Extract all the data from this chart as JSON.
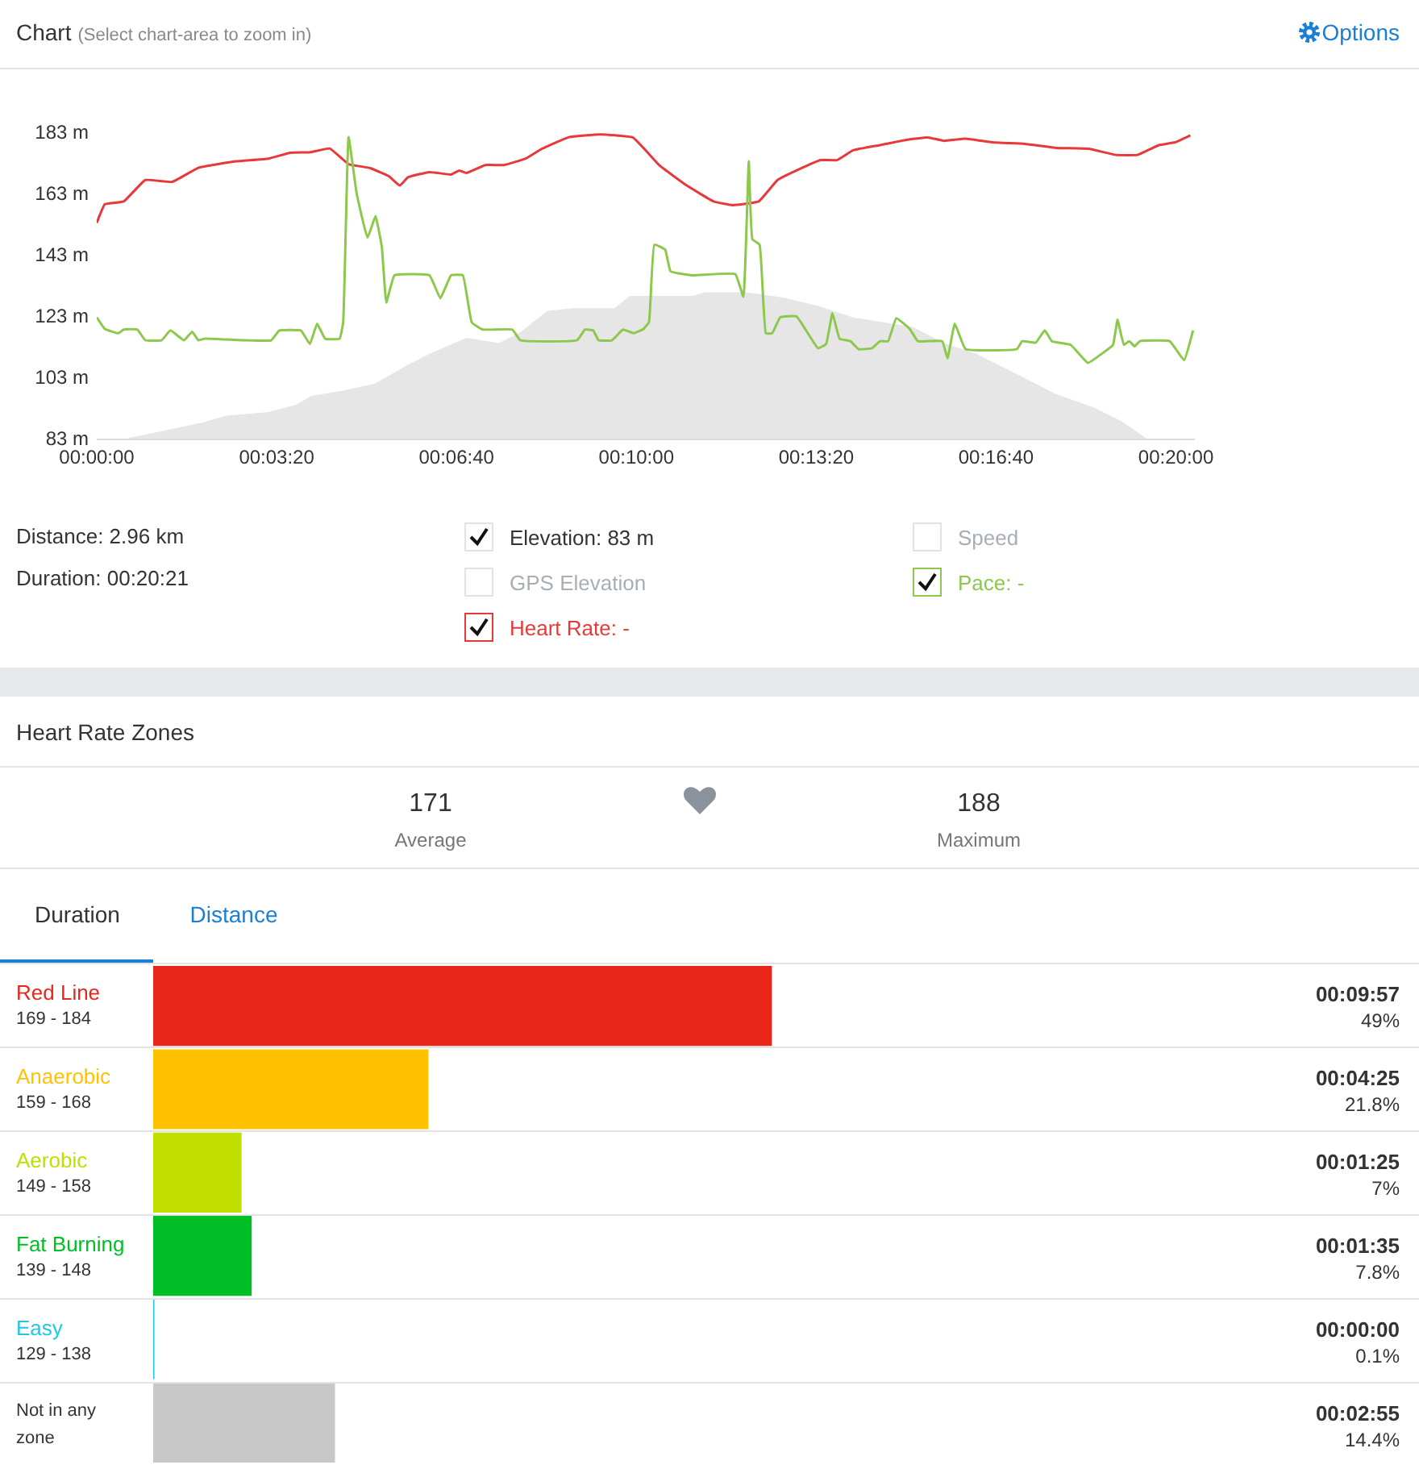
{
  "chart_data": [
    {
      "type": "line",
      "title": "Chart",
      "subtitle": "(Select chart-area to zoom in)",
      "legend": "bottom",
      "xlim": [
        0,
        1221
      ],
      "xticks": [
        {
          "value": 0,
          "label": "00:00:00"
        },
        {
          "value": 200,
          "label": "00:03:20"
        },
        {
          "value": 400,
          "label": "00:06:40"
        },
        {
          "value": 600,
          "label": "00:10:00"
        },
        {
          "value": 800,
          "label": "00:13:20"
        },
        {
          "value": 1000,
          "label": "00:16:40"
        },
        {
          "value": 1200,
          "label": "00:20:00"
        }
      ],
      "ylim": [
        83,
        183
      ],
      "yticks": [
        {
          "value": 83,
          "label": "83 m"
        },
        {
          "value": 103,
          "label": "103 m"
        },
        {
          "value": 123,
          "label": "123 m"
        },
        {
          "value": 143,
          "label": "143 m"
        },
        {
          "value": 163,
          "label": "163 m"
        },
        {
          "value": 183,
          "label": "183 m"
        }
      ],
      "annotations": [
        "Options",
        "Distance: 2.96 km",
        "Duration: 00:20:21",
        "GPS Elevation",
        "Speed"
      ],
      "series": [
        {
          "name": "Elevation: 83 m",
          "type": "area",
          "color": "#e6e6e6",
          "x": [
            36,
            60,
            89,
            119,
            143,
            191,
            221,
            239,
            274,
            310,
            346,
            370,
            411,
            447,
            471,
            501,
            529,
            576,
            593,
            662,
            677,
            722,
            763,
            805,
            841,
            907,
            942,
            978,
            1020,
            1067,
            1109,
            1139,
            1166
          ],
          "values": [
            83,
            84.4,
            86.2,
            88.1,
            90.2,
            91.4,
            93.7,
            96.7,
            98.4,
            100.7,
            106.8,
            110.4,
            115.6,
            113.9,
            117.4,
            124.4,
            125.3,
            125.3,
            129.3,
            129.3,
            130.5,
            130.5,
            128.8,
            125.8,
            122.3,
            119.2,
            113.9,
            110.4,
            104.2,
            97.2,
            92.8,
            88.4,
            83
          ]
        },
        {
          "name": "Heart Rate: -",
          "type": "line",
          "color": "#e8393a",
          "x": [
            0,
            9,
            30,
            54,
            84,
            113,
            155,
            191,
            215,
            238,
            259,
            280,
            304,
            325,
            337,
            346,
            370,
            394,
            403,
            411,
            432,
            453,
            477,
            495,
            525,
            560,
            596,
            626,
            656,
            686,
            707,
            736,
            757,
            781,
            805,
            823,
            841,
            871,
            900,
            924,
            942,
            966,
            996,
            1032,
            1067,
            1103,
            1133,
            1157,
            1181,
            1199,
            1216
          ],
          "values": [
            153.4,
            159.5,
            160.4,
            167.4,
            166.8,
            171.4,
            173.5,
            174.4,
            176.3,
            176.5,
            177.7,
            172.6,
            171.3,
            168.6,
            165.6,
            168.3,
            170,
            169.2,
            170.5,
            169.7,
            172.3,
            172.3,
            174.4,
            177.6,
            181.4,
            182.3,
            181.3,
            172.1,
            165.6,
            160.4,
            159.2,
            160.4,
            167.4,
            170.9,
            173.9,
            173.9,
            177.1,
            178.8,
            180.5,
            181.3,
            180.2,
            180.9,
            179.7,
            179.2,
            177.9,
            177.6,
            175.6,
            175.6,
            178.8,
            179.7,
            182
          ]
        },
        {
          "name": "Pace: -",
          "type": "line",
          "color": "#8cc84b",
          "x": [
            0,
            9,
            24,
            30,
            45,
            54,
            72,
            82,
            97,
            106,
            113,
            120,
            194,
            203,
            227,
            237,
            245,
            254,
            270,
            274,
            280,
            289,
            301,
            310,
            317,
            322,
            331,
            370,
            382,
            394,
            407,
            417,
            429,
            462,
            471,
            534,
            543,
            552,
            558,
            573,
            585,
            597,
            608,
            614,
            620,
            632,
            638,
            662,
            710,
            719,
            725,
            729,
            737,
            744,
            751,
            760,
            778,
            802,
            811,
            818,
            826,
            838,
            847,
            862,
            871,
            880,
            889,
            904,
            913,
            940,
            946,
            954,
            966,
            1023,
            1029,
            1044,
            1054,
            1062,
            1083,
            1102,
            1118,
            1130,
            1135,
            1142,
            1148,
            1154,
            1160,
            1193,
            1209,
            1219
          ],
          "values": [
            122.6,
            118.8,
            117.4,
            118.6,
            118.6,
            115.1,
            115.1,
            118.3,
            115.1,
            117.9,
            115.1,
            115.6,
            115.1,
            118.3,
            118.3,
            113.9,
            120.5,
            115.6,
            115.6,
            121,
            181.4,
            163,
            148.6,
            155.6,
            145.5,
            127.4,
            136.3,
            136.3,
            128.8,
            136.3,
            136.3,
            120.9,
            118.6,
            118.6,
            115.1,
            115.1,
            118.6,
            118.3,
            115.1,
            115.1,
            118.6,
            117.4,
            118.8,
            121,
            146.3,
            144.7,
            137.6,
            136.3,
            136.7,
            129.3,
            173.5,
            148.1,
            146.3,
            117.4,
            117.4,
            122.6,
            122.9,
            112.5,
            113.9,
            123.9,
            115.6,
            114.8,
            112.2,
            112.5,
            114.8,
            114.8,
            122.3,
            118.8,
            114.8,
            114.8,
            109.2,
            120.5,
            112.2,
            112.2,
            114.8,
            114.3,
            118.3,
            114.8,
            113.6,
            107.7,
            110.8,
            113.6,
            121.8,
            113.6,
            114.8,
            113.1,
            114.8,
            114.8,
            108.6,
            118.3
          ]
        }
      ]
    },
    {
      "type": "bar",
      "orientation": "horizontal",
      "title": "Heart Rate Zones",
      "tick_labels": "y",
      "annotations": [
        "171",
        "Average",
        "188",
        "Maximum",
        "Duration",
        "Distance"
      ],
      "categories": [
        "Red Line\n169 - 184",
        "Anaerobic\n159 - 168",
        "Aerobic\n149 - 158",
        "Fat Burning\n139 - 148",
        "Easy\n129 - 138",
        "Not in any\nzone"
      ],
      "values": [
        49,
        21.8,
        7,
        7.8,
        0.1,
        14.4
      ],
      "colors": [
        "#e8261a",
        "#ffc200",
        "#c0df00",
        "#00bf26",
        "#1ec8e6",
        "#c8c8c8"
      ],
      "value_labels": [
        "00:09:57\n49%",
        "00:04:25\n21.8%",
        "00:01:25\n7%",
        "00:01:35\n7.8%",
        "00:00:00\n0.1%",
        "00:02:55\n14.4%"
      ],
      "xlim": [
        0,
        100
      ]
    }
  ]
}
